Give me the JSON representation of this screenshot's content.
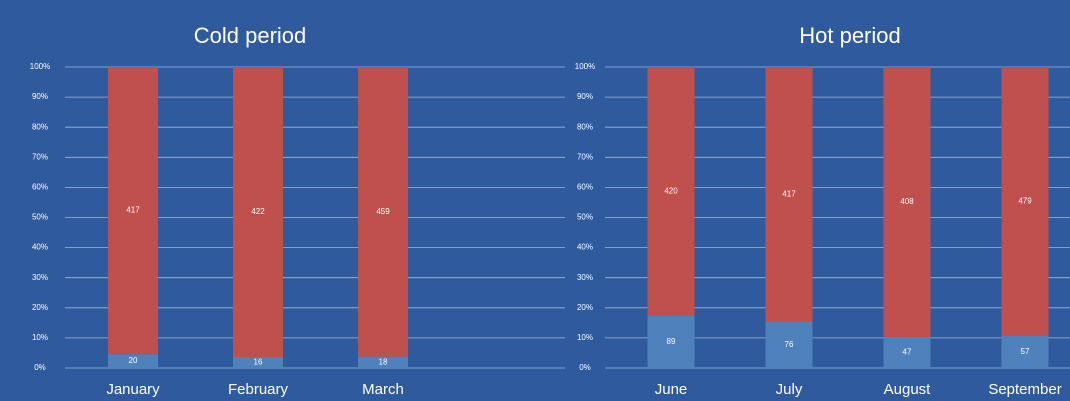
{
  "chart_data": [
    {
      "type": "bar",
      "stacking": "percent",
      "title": "Cold period",
      "categories": [
        "January",
        "February",
        "March"
      ],
      "series": [
        {
          "color": "#4f81bd",
          "values": [
            20,
            16,
            18
          ]
        },
        {
          "color": "#c0504d",
          "values": [
            417,
            422,
            459
          ]
        }
      ],
      "ylim": [
        0,
        100
      ],
      "yticks": [
        {
          "value": 0,
          "label": "0%"
        },
        {
          "value": 10,
          "label": "10%"
        },
        {
          "value": 20,
          "label": "20%"
        },
        {
          "value": 30,
          "label": "30%"
        },
        {
          "value": 40,
          "label": "40%"
        },
        {
          "value": 50,
          "label": "50%"
        },
        {
          "value": 60,
          "label": "60%"
        },
        {
          "value": 70,
          "label": "70%"
        },
        {
          "value": 80,
          "label": "80%"
        },
        {
          "value": 90,
          "label": "90%"
        },
        {
          "value": 100,
          "label": "100%"
        }
      ],
      "grid": true
    },
    {
      "type": "bar",
      "stacking": "percent",
      "title": "Hot period",
      "categories": [
        "June",
        "July",
        "August",
        "September"
      ],
      "series": [
        {
          "color": "#4f81bd",
          "values": [
            89,
            76,
            47,
            57
          ]
        },
        {
          "color": "#c0504d",
          "values": [
            420,
            417,
            408,
            479
          ]
        }
      ],
      "ylim": [
        0,
        100
      ],
      "yticks": [
        {
          "value": 0,
          "label": "0%"
        },
        {
          "value": 10,
          "label": "10%"
        },
        {
          "value": 20,
          "label": "20%"
        },
        {
          "value": 30,
          "label": "30%"
        },
        {
          "value": 40,
          "label": "40%"
        },
        {
          "value": 50,
          "label": "50%"
        },
        {
          "value": 60,
          "label": "60%"
        },
        {
          "value": 70,
          "label": "70%"
        },
        {
          "value": 80,
          "label": "80%"
        },
        {
          "value": 90,
          "label": "90%"
        },
        {
          "value": 100,
          "label": "100%"
        }
      ],
      "grid": true
    }
  ]
}
